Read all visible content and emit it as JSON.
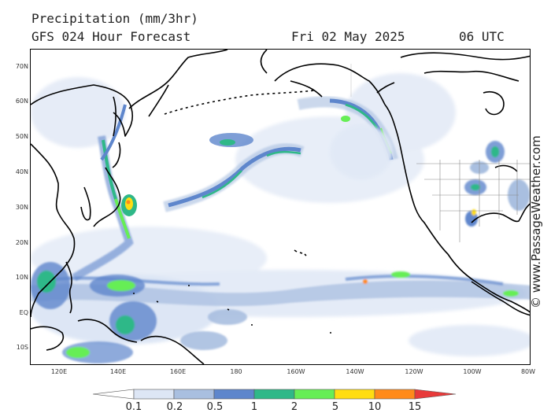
{
  "header": {
    "title": "Precipitation (mm/3hr)",
    "model": "GFS 024 Hour Forecast",
    "date": "Fri 02 May 2025",
    "time": "06 UTC"
  },
  "credit": "© www.PassageWeather.com",
  "lat_labels": [
    "70N",
    "60N",
    "50N",
    "40N",
    "30N",
    "20N",
    "10N",
    "EQ",
    "10S"
  ],
  "lon_labels": [
    "120E",
    "140E",
    "160E",
    "180",
    "160W",
    "140W",
    "120W",
    "100W",
    "80W"
  ],
  "colorbar": {
    "ticks": [
      "0.1",
      "0.2",
      "0.5",
      "1",
      "2",
      "5",
      "10",
      "15"
    ],
    "colors": [
      "#ffffff",
      "#dde6f5",
      "#a9bfe0",
      "#5e86cc",
      "#2fb888",
      "#66ee55",
      "#ffdd11",
      "#ff8a1a",
      "#e83a3a"
    ]
  }
}
